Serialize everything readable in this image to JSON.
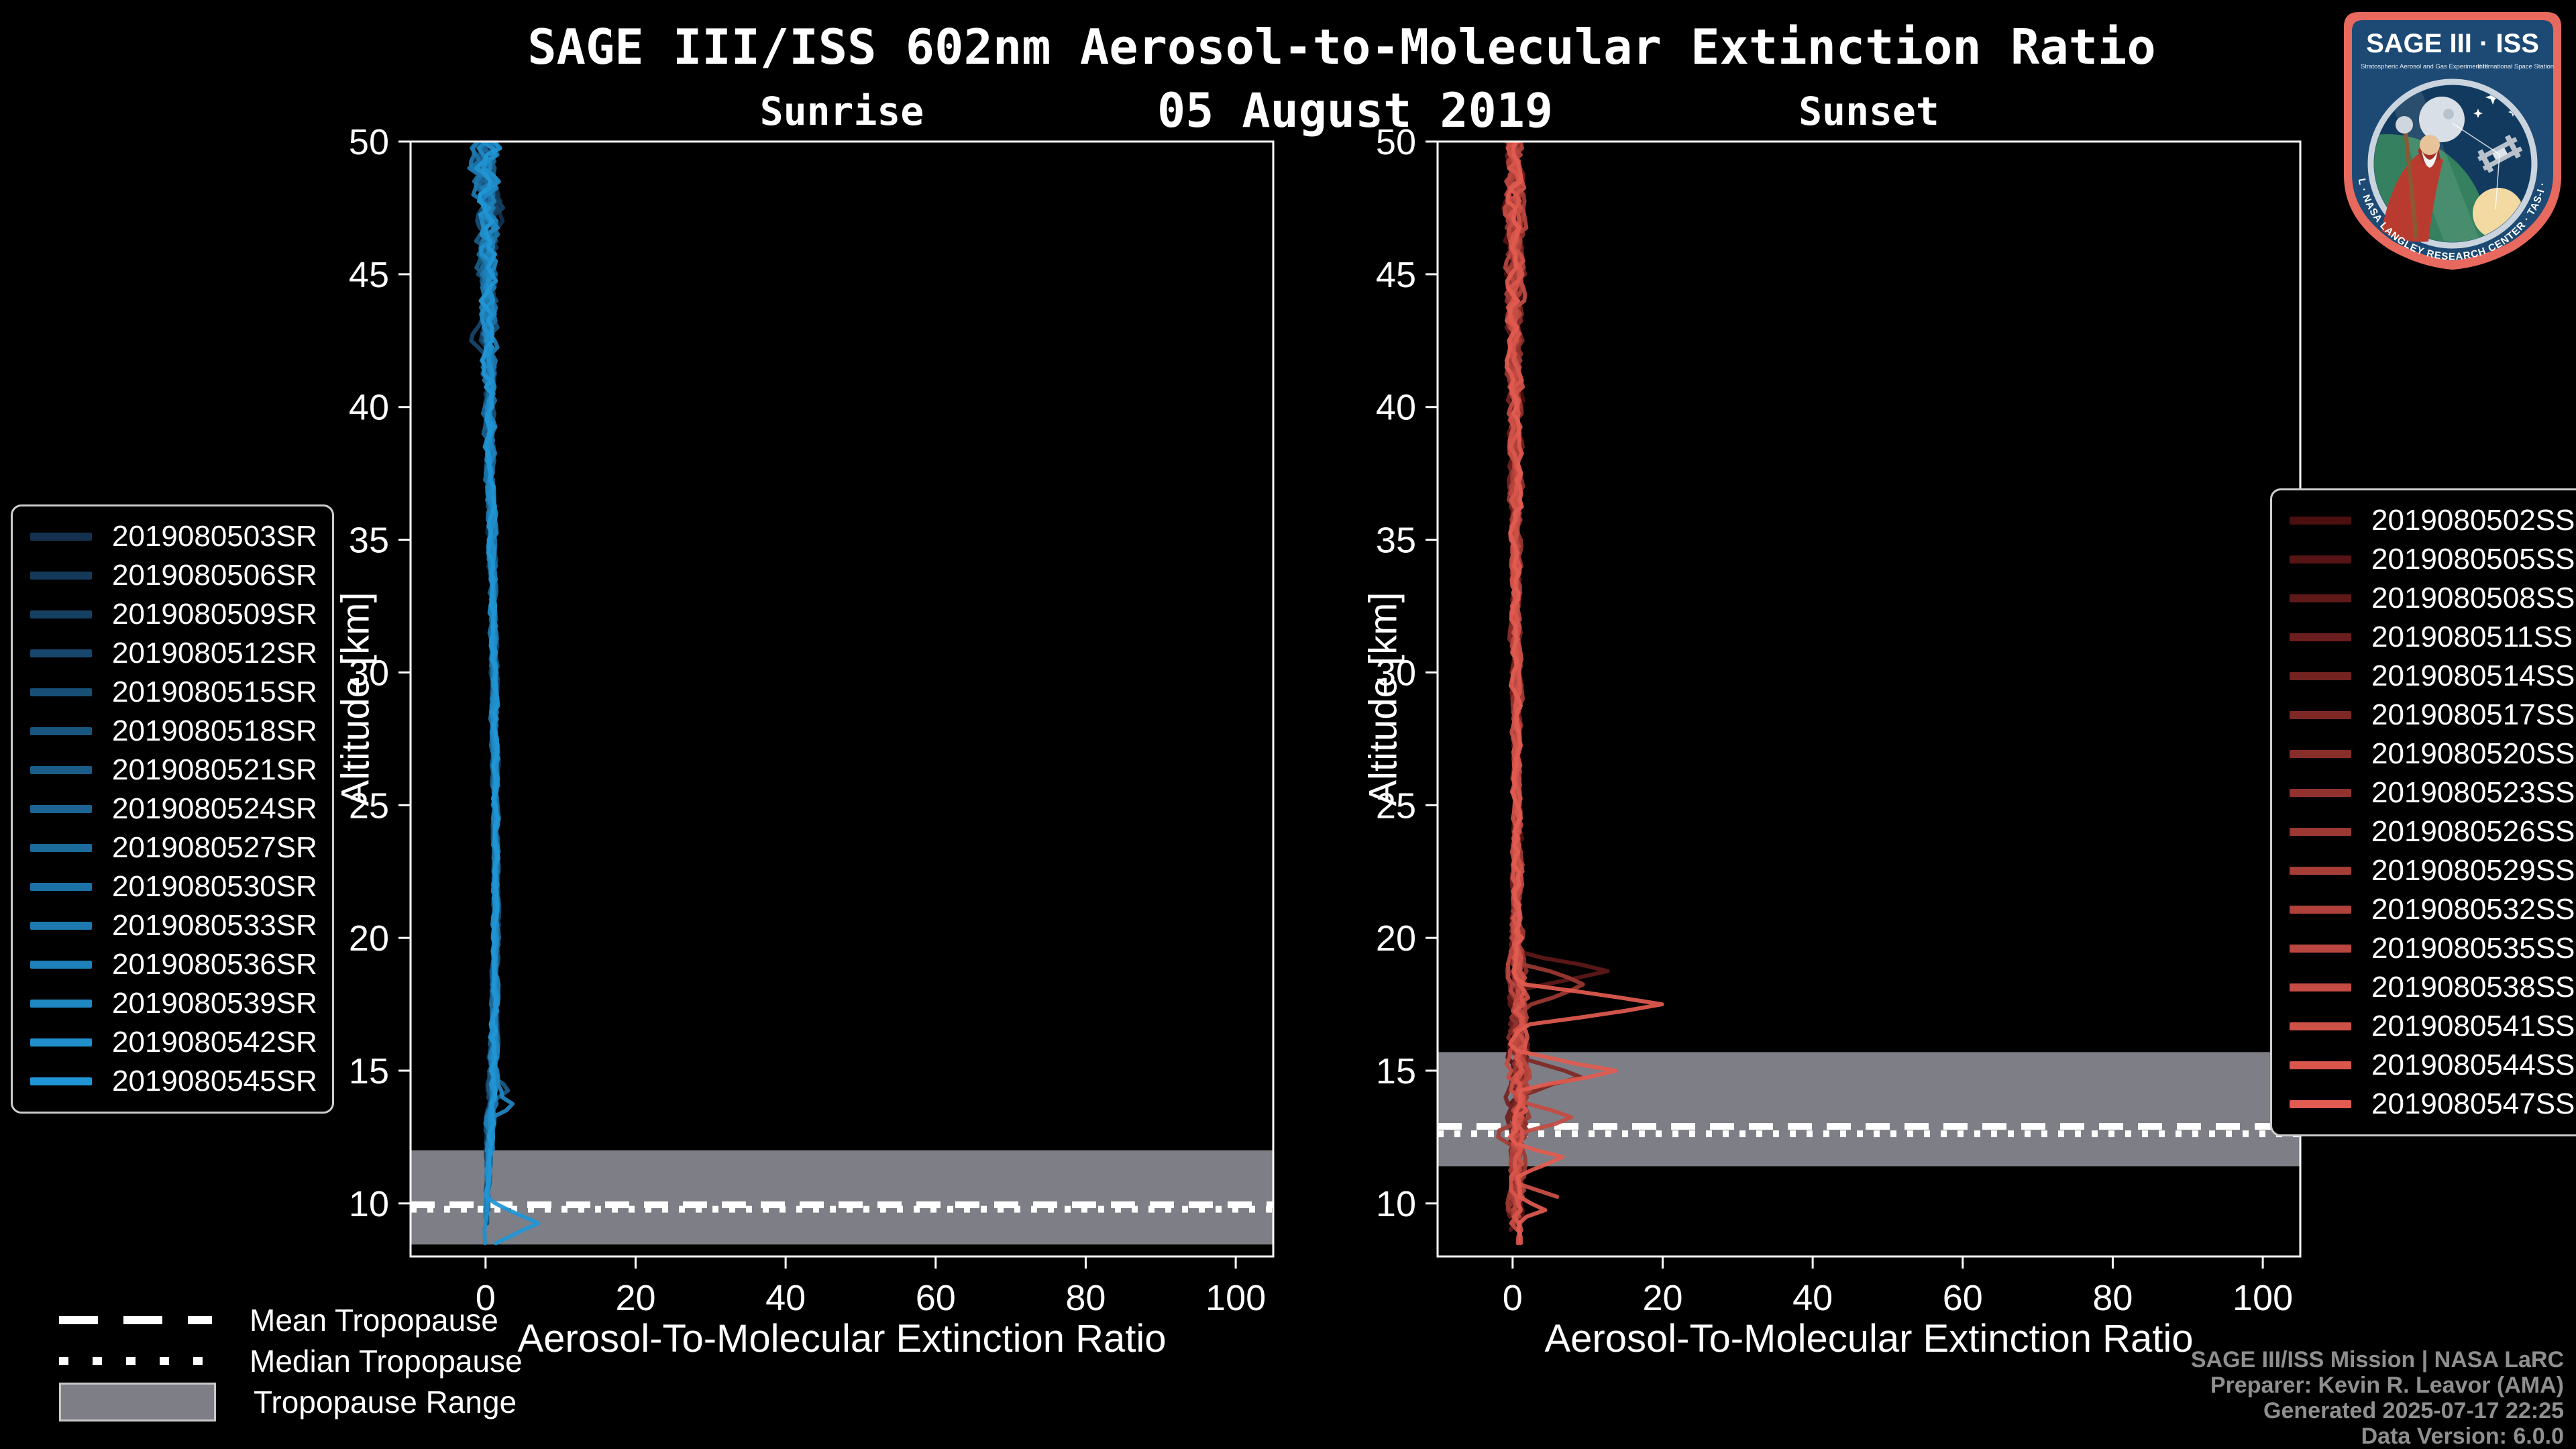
{
  "figure": {
    "title": "SAGE III/ISS 602nm Aerosol-to-Molecular Extinction Ratio",
    "date": "05 August 2019",
    "background_color": "#000000",
    "text_color": "#ffffff"
  },
  "attribution": {
    "color": "#8f8f8f",
    "lines": [
      "SAGE III/ISS Mission | NASA LaRC",
      "Preparer: Kevin R. Leavor (AMA)",
      "Generated 2025-07-17 22:25",
      "Data Version: 6.0.0"
    ]
  },
  "tropopause_legend": {
    "items": [
      {
        "label": "Mean Tropopause",
        "style": "dashed"
      },
      {
        "label": "Median Tropopause",
        "style": "dotted"
      },
      {
        "label": "Tropopause Range",
        "style": "band"
      }
    ]
  },
  "logo": {
    "title": "SAGE III · ISS",
    "sub_left": "Stratospheric Aerosol and Gas Experiment III",
    "sub_right": "International Space Station",
    "ring_text": "BALL · NASA LANGLEY RESEARCH CENTER · TAS-I · ESA",
    "colors": {
      "border": "#e8695e",
      "field": "#1c4a74",
      "ring": "#c9d4de",
      "earth": "#35805f",
      "sun": "#f3d9a2",
      "moon": "#d8dfe6",
      "robe": "#b93b30"
    }
  },
  "chart_data": [
    {
      "id": "sunrise",
      "type": "line",
      "title": "Sunrise",
      "xlabel": "Aerosol-To-Molecular Extinction Ratio",
      "ylabel": "Altitude [km]",
      "xlim": [
        -10,
        105
      ],
      "ylim": [
        8,
        50
      ],
      "xticks": [
        0,
        20,
        40,
        60,
        80,
        100
      ],
      "yticks": [
        10,
        15,
        20,
        25,
        30,
        35,
        40,
        45,
        50
      ],
      "grid": false,
      "legend_position": "outside-left",
      "color_start": "#14324f",
      "color_end": "#2196d6",
      "series": [
        "2019080503SR",
        "2019080506SR",
        "2019080509SR",
        "2019080512SR",
        "2019080515SR",
        "2019080518SR",
        "2019080521SR",
        "2019080524SR",
        "2019080527SR",
        "2019080530SR",
        "2019080533SR",
        "2019080536SR",
        "2019080539SR",
        "2019080542SR",
        "2019080545SR"
      ],
      "baseline_profile": [
        [
          50,
          0.2
        ],
        [
          46,
          0.3
        ],
        [
          42,
          0.4
        ],
        [
          38,
          0.6
        ],
        [
          34,
          0.9
        ],
        [
          30,
          1.1
        ],
        [
          26,
          1.3
        ],
        [
          22,
          1.4
        ],
        [
          18,
          1.3
        ],
        [
          15,
          1.0
        ],
        [
          13,
          0.6
        ],
        [
          11,
          0.3
        ],
        [
          9.5,
          0.15
        ],
        [
          8,
          0.1
        ]
      ],
      "jitter_profile": [
        [
          50,
          2.0
        ],
        [
          47,
          1.7
        ],
        [
          44,
          1.3
        ],
        [
          41,
          1.0
        ],
        [
          38,
          0.75
        ],
        [
          34,
          0.6
        ],
        [
          30,
          0.5
        ],
        [
          25,
          0.45
        ],
        [
          20,
          0.45
        ],
        [
          16,
          0.6
        ],
        [
          14,
          0.75
        ],
        [
          12,
          0.45
        ],
        [
          10,
          0.3
        ],
        [
          8,
          0.25
        ]
      ],
      "features": [
        {
          "series": 14,
          "altitude": 9.25,
          "peak": 6.8,
          "width": 0.9
        },
        {
          "series": 12,
          "altitude": 13.75,
          "peak": 2.5,
          "width": 0.6
        },
        {
          "series": 6,
          "altitude": 14.25,
          "peak": 2.0,
          "width": 0.5
        },
        {
          "series": 3,
          "altitude": 42.75,
          "peak": -3.0,
          "width": 0.8
        },
        {
          "series": 2,
          "altitude": 47.5,
          "peak": 3.5,
          "width": 0.9
        },
        {
          "series": 9,
          "altitude": 49.0,
          "peak": -3.0,
          "width": 0.8
        }
      ],
      "tropopause": {
        "mean": 9.95,
        "median": 9.78,
        "range": [
          8.45,
          12.0
        ],
        "band_color": "#7e7e86",
        "line_color": "#ffffff"
      }
    },
    {
      "id": "sunset",
      "type": "line",
      "title": "Sunset",
      "xlabel": "Aerosol-To-Molecular Extinction Ratio",
      "ylabel": "Altitude [km]",
      "xlim": [
        -10,
        105
      ],
      "ylim": [
        8,
        50
      ],
      "xticks": [
        0,
        20,
        40,
        60,
        80,
        100
      ],
      "yticks": [
        10,
        15,
        20,
        25,
        30,
        35,
        40,
        45,
        50
      ],
      "grid": false,
      "legend_position": "outside-right",
      "color_start": "#4c0f10",
      "color_end": "#e25b50",
      "series": [
        "2019080502SS",
        "2019080505SS",
        "2019080508SS",
        "2019080511SS",
        "2019080514SS",
        "2019080517SS",
        "2019080520SS",
        "2019080523SS",
        "2019080526SS",
        "2019080529SS",
        "2019080532SS",
        "2019080535SS",
        "2019080538SS",
        "2019080541SS",
        "2019080544SS",
        "2019080547SS"
      ],
      "baseline_profile": [
        [
          50,
          0.2
        ],
        [
          45,
          0.25
        ],
        [
          40,
          0.3
        ],
        [
          35,
          0.35
        ],
        [
          30,
          0.45
        ],
        [
          25,
          0.55
        ],
        [
          20,
          0.65
        ],
        [
          17,
          0.8
        ],
        [
          14,
          0.8
        ],
        [
          12,
          0.6
        ],
        [
          10,
          0.4
        ],
        [
          8,
          0.3
        ]
      ],
      "jitter_profile": [
        [
          50,
          1.5
        ],
        [
          46,
          1.3
        ],
        [
          42,
          1.1
        ],
        [
          38,
          0.9
        ],
        [
          34,
          0.8
        ],
        [
          30,
          0.7
        ],
        [
          26,
          0.65
        ],
        [
          22,
          0.8
        ],
        [
          19,
          1.2
        ],
        [
          16,
          1.4
        ],
        [
          13,
          1.5
        ],
        [
          11,
          1.2
        ],
        [
          9,
          0.9
        ],
        [
          8,
          0.7
        ]
      ],
      "features": [
        {
          "series": 15,
          "altitude": 17.5,
          "peak": 20.0,
          "width": 0.8
        },
        {
          "series": 15,
          "altitude": 15.0,
          "peak": 13.0,
          "width": 0.7
        },
        {
          "series": 2,
          "altitude": 18.75,
          "peak": 12.5,
          "width": 0.7
        },
        {
          "series": 8,
          "altitude": 18.25,
          "peak": 9.0,
          "width": 0.8
        },
        {
          "series": 5,
          "altitude": 14.75,
          "peak": 7.5,
          "width": 0.7
        },
        {
          "series": 12,
          "altitude": 13.25,
          "peak": 7.0,
          "width": 0.6
        },
        {
          "series": 15,
          "altitude": 11.75,
          "peak": 6.0,
          "width": 0.6
        },
        {
          "series": 13,
          "altitude": 10.25,
          "peak": 5.0,
          "width": 0.5
        },
        {
          "series": 9,
          "altitude": 12.5,
          "peak": -2.5,
          "width": 0.5
        },
        {
          "series": 15,
          "altitude": 9.75,
          "peak": 3.0,
          "width": 0.5
        }
      ],
      "tropopause": {
        "mean": 12.9,
        "median": 12.62,
        "range": [
          11.4,
          15.7
        ],
        "band_color": "#7e7e86",
        "line_color": "#ffffff"
      }
    }
  ]
}
